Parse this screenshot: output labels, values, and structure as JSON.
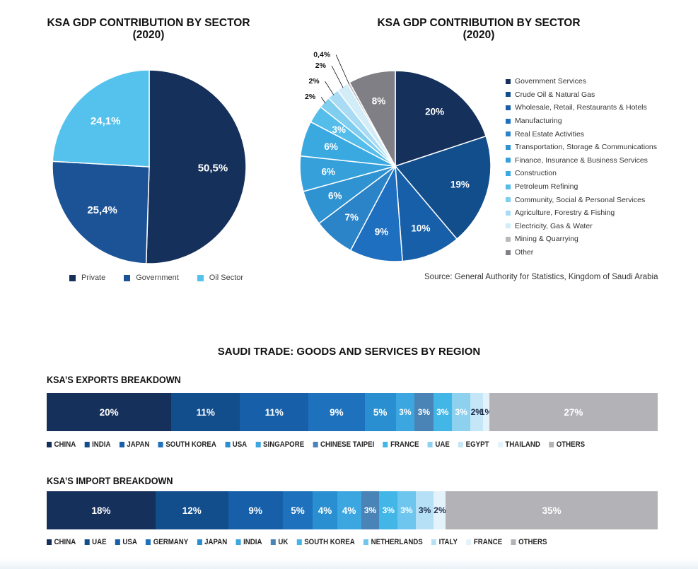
{
  "pie1": {
    "title_line1": "KSA GDP CONTRIBUTION BY SECTOR",
    "title_line2": "(2020)"
  },
  "pie2": {
    "title_line1": "KSA GDP CONTRIBUTION BY SECTOR",
    "title_line2": "(2020)",
    "source": "Source: General Authority for Statistics, Kingdom of Saudi Arabia"
  },
  "trade": {
    "title": "SAUDI TRADE: GOODS AND SERVICES BY REGION",
    "exports_title": "KSA’S EXPORTS BREAKDOWN",
    "imports_title": "KSA’S IMPORT BREAKDOWN"
  },
  "chart_data": [
    {
      "type": "pie",
      "title": "KSA GDP CONTRIBUTION BY SECTOR (2020)",
      "legend_position": "bottom",
      "slices": [
        {
          "name": "Private",
          "value": 50.5,
          "label": "50,5%",
          "color": "#15305a"
        },
        {
          "name": "Government",
          "value": 25.4,
          "label": "25,4%",
          "color": "#1b5396"
        },
        {
          "name": "Oil Sector",
          "value": 24.1,
          "label": "24,1%",
          "color": "#54c2ec"
        }
      ]
    },
    {
      "type": "pie",
      "title": "KSA GDP CONTRIBUTION BY SECTOR (2020)",
      "legend_position": "right",
      "slices": [
        {
          "name": "Government Services",
          "value": 20,
          "label": "20%",
          "color": "#15305a"
        },
        {
          "name": "Crude Oil & Natural Gas",
          "value": 19,
          "label": "19%",
          "color": "#124d8c"
        },
        {
          "name": "Wholesale, Retail, Restaurants & Hotels",
          "value": 10,
          "label": "10%",
          "color": "#175fa8"
        },
        {
          "name": "Manufacturing",
          "value": 9,
          "label": "9%",
          "color": "#1e6fbf"
        },
        {
          "name": "Real Estate Activities",
          "value": 7,
          "label": "7%",
          "color": "#2b83c8"
        },
        {
          "name": "Transportation, Storage & Communications",
          "value": 6,
          "label": "6%",
          "color": "#2f93d2"
        },
        {
          "name": "Finance, Insurance & Business Services",
          "value": 6,
          "label": "6%",
          "color": "#35a0da"
        },
        {
          "name": "Construction",
          "value": 6,
          "label": "6%",
          "color": "#3aa9e0"
        },
        {
          "name": "Petroleum Refining",
          "value": 3,
          "label": "3%",
          "color": "#55bdea"
        },
        {
          "name": "Community, Social & Personal Services",
          "value": 2,
          "label": "2%",
          "color": "#7fcdef"
        },
        {
          "name": "Agriculture, Forestry & Fishing",
          "value": 2,
          "label": "2%",
          "color": "#a9dcf4"
        },
        {
          "name": "Electricity, Gas & Water",
          "value": 2,
          "label": "2%",
          "color": "#d2ecf8"
        },
        {
          "name": "Mining & Quarrying",
          "value": 0.4,
          "label": "0,4%",
          "color": "#b8b8bc"
        },
        {
          "name": "Other",
          "value": 8,
          "label": "8%",
          "color": "#807f86"
        }
      ]
    },
    {
      "type": "bar",
      "orientation": "horizontal-stacked",
      "title": "KSA’S EXPORTS BREAKDOWN",
      "segments": [
        {
          "name": "CHINA",
          "value": 20,
          "label": "20%",
          "color": "#15305a"
        },
        {
          "name": "INDIA",
          "value": 11,
          "label": "11%",
          "color": "#124d8c"
        },
        {
          "name": "JAPAN",
          "value": 11,
          "label": "11%",
          "color": "#175fa8"
        },
        {
          "name": "SOUTH KOREA",
          "value": 9,
          "label": "9%",
          "color": "#1e71bd"
        },
        {
          "name": "USA",
          "value": 5,
          "label": "5%",
          "color": "#2a8fd0"
        },
        {
          "name": "SINGAPORE",
          "value": 3,
          "label": "3%",
          "color": "#3ba6df"
        },
        {
          "name": "CHINESE TAIPEI",
          "value": 3,
          "label": "3%",
          "color": "#4a83b5"
        },
        {
          "name": "FRANCE",
          "value": 3,
          "label": "3%",
          "color": "#43b6e8"
        },
        {
          "name": "UAE",
          "value": 3,
          "label": "3%",
          "color": "#8ed1ef"
        },
        {
          "name": "EGYPT",
          "value": 2,
          "label": "2%",
          "color": "#c5e6f6"
        },
        {
          "name": "THAILAND",
          "value": 1,
          "label": "1%",
          "color": "#e4f3fb"
        },
        {
          "name": "OTHERS",
          "value": 27,
          "label": "27%",
          "color": "#b3b3b7"
        }
      ]
    },
    {
      "type": "bar",
      "orientation": "horizontal-stacked",
      "title": "KSA’S IMPORT BREAKDOWN",
      "segments": [
        {
          "name": "CHINA",
          "value": 18,
          "label": "18%",
          "color": "#15305a"
        },
        {
          "name": "UAE",
          "value": 12,
          "label": "12%",
          "color": "#124d8c"
        },
        {
          "name": "USA",
          "value": 9,
          "label": "9%",
          "color": "#175fa8"
        },
        {
          "name": "GERMANY",
          "value": 5,
          "label": "5%",
          "color": "#1e71bd"
        },
        {
          "name": "JAPAN",
          "value": 4,
          "label": "4%",
          "color": "#2a8fd0"
        },
        {
          "name": "INDIA",
          "value": 4,
          "label": "4%",
          "color": "#3ba6df"
        },
        {
          "name": "UK",
          "value": 3,
          "label": "3%",
          "color": "#4a83b5"
        },
        {
          "name": "SOUTH KOREA",
          "value": 3,
          "label": "3%",
          "color": "#43b6e8"
        },
        {
          "name": "NETHERLANDS",
          "value": 3,
          "label": "3%",
          "color": "#6ec6ee"
        },
        {
          "name": "ITALY",
          "value": 3,
          "label": "3%",
          "color": "#b6e0f5"
        },
        {
          "name": "FRANCE",
          "value": 2,
          "label": "2%",
          "color": "#e4f3fb"
        },
        {
          "name": "OTHERS",
          "value": 35,
          "label": "35%",
          "color": "#b3b3b7"
        }
      ]
    }
  ]
}
